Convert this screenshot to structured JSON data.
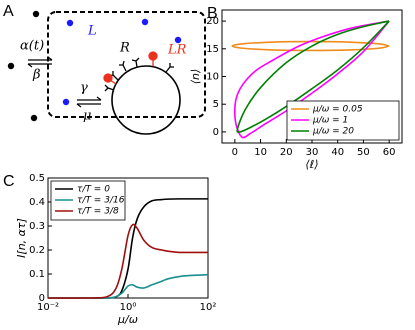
{
  "diagram": {
    "panel_label": "A",
    "labels": {
      "ligand": "L",
      "receptor": "R",
      "complex": "LR",
      "alpha": "α(t)",
      "beta": "β",
      "gamma": "γ",
      "mu": "μ"
    }
  },
  "chart_data": [
    {
      "type": "line",
      "panel_label": "B",
      "x_label": "⟨ℓ⟩",
      "y_label": "⟨n⟩",
      "xlim": [
        -5,
        65
      ],
      "ylim": [
        -2,
        22
      ],
      "xticks": [
        0,
        10,
        20,
        30,
        40,
        50,
        60
      ],
      "yticks": [
        0,
        5,
        10,
        15,
        20
      ],
      "legend": "lower right",
      "series": [
        {
          "name": "μ/ω = 0.05",
          "color": "#f08c1e",
          "x": [
            60,
            55.9,
            44.8,
            29.5,
            14.3,
            3.1,
            -1,
            3.1,
            14.3,
            29.5,
            44.8,
            55.9,
            60
          ],
          "values": [
            15.5,
            15.9,
            16.2,
            16.3,
            16.2,
            15.9,
            15.5,
            15.1,
            14.8,
            14.7,
            14.8,
            15.1,
            15.5
          ]
        },
        {
          "name": "μ/ω = 1",
          "color": "#ff00ff",
          "x": [
            60,
            50,
            40,
            30,
            20,
            12,
            6,
            3,
            1,
            0,
            0.5,
            3,
            8,
            15,
            25,
            35,
            45,
            55,
            60
          ],
          "values": [
            20,
            14.5,
            10.5,
            7,
            3.8,
            1.5,
            -0.3,
            -1,
            0.5,
            3,
            6,
            8.5,
            11,
            13,
            15.5,
            17.3,
            18.7,
            19.6,
            20
          ]
        },
        {
          "name": "μ/ω = 20",
          "color": "#008000",
          "x": [
            60,
            50,
            40,
            30,
            20,
            12,
            6,
            2,
            1,
            4,
            10,
            20,
            30,
            40,
            50,
            60
          ],
          "values": [
            20,
            15.2,
            11.2,
            7.8,
            4.6,
            2.3,
            0.8,
            0,
            0.5,
            4,
            8,
            12.5,
            15.5,
            17.6,
            19,
            20
          ]
        }
      ]
    },
    {
      "type": "line",
      "panel_label": "C",
      "x_label": "μ/ω",
      "y_label": "I[n, ατ]",
      "log_x": true,
      "xlim": [
        0.01,
        100
      ],
      "ylim": [
        0,
        0.5
      ],
      "xticks": [
        {
          "value": 0.01,
          "label": "10⁻²"
        },
        {
          "value": 1,
          "label": "10⁰"
        },
        {
          "value": 100,
          "label": "10²"
        }
      ],
      "yticks": [
        0,
        0.1,
        0.2,
        0.3,
        0.4,
        0.5
      ],
      "legend": "upper left",
      "x": [
        0.01,
        0.1,
        0.3,
        0.5,
        0.7,
        1,
        1.3,
        1.7,
        2.5,
        4,
        7,
        10,
        20,
        50,
        100
      ],
      "series": [
        {
          "name": "τ/T = 0",
          "color": "#000000",
          "values": [
            0,
            0,
            0,
            0.005,
            0.03,
            0.12,
            0.25,
            0.33,
            0.38,
            0.405,
            0.41,
            0.412,
            0.413,
            0.413,
            0.413
          ]
        },
        {
          "name": "τ/T = 3/16",
          "color": "#1a8f8f",
          "values": [
            0,
            0,
            0,
            0.005,
            0.02,
            0.05,
            0.055,
            0.045,
            0.042,
            0.055,
            0.07,
            0.08,
            0.09,
            0.095,
            0.097
          ]
        },
        {
          "name": "τ/T = 3/8",
          "color": "#a01010",
          "values": [
            0,
            0,
            0.005,
            0.04,
            0.12,
            0.26,
            0.305,
            0.29,
            0.24,
            0.21,
            0.2,
            0.195,
            0.19,
            0.19,
            0.19
          ]
        }
      ]
    }
  ]
}
